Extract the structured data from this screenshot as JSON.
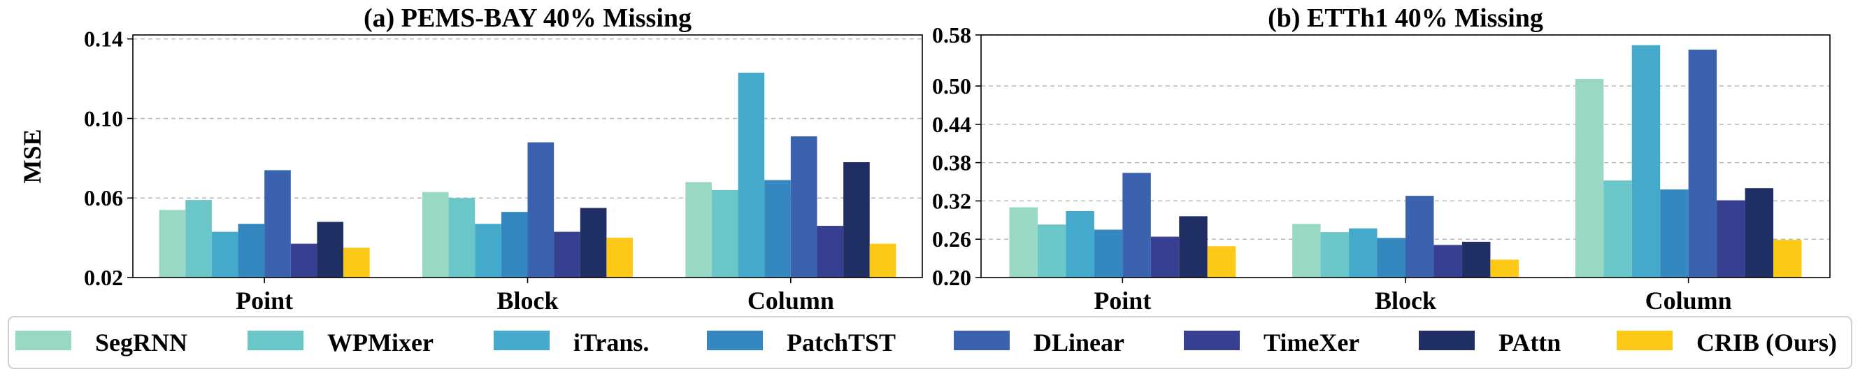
{
  "colors": [
    "#98d8c4",
    "#6bc6c9",
    "#44aacb",
    "#3488bf",
    "#3a62ae",
    "#373f91",
    "#1f2f63",
    "#fdc917"
  ],
  "legend": [
    "SegRNN",
    "WPMixer",
    "iTrans.",
    "PatchTST",
    "DLinear",
    "TimeXer",
    "PAttn",
    "CRIB (Ours)"
  ],
  "chart_data": [
    {
      "type": "bar",
      "title": "(a) PEMS-BAY 40% Missing",
      "ylabel": "MSE",
      "categories": [
        "Point",
        "Block",
        "Column"
      ],
      "ylim": [
        0.02,
        0.142
      ],
      "yticks": [
        0.02,
        0.06,
        0.1,
        0.14
      ],
      "ytick_labels": [
        "0.02",
        "0.06",
        "0.10",
        "0.14"
      ],
      "series": [
        {
          "name": "SegRNN",
          "values": [
            0.054,
            0.063,
            0.068
          ]
        },
        {
          "name": "WPMixer",
          "values": [
            0.059,
            0.06,
            0.064
          ]
        },
        {
          "name": "iTrans.",
          "values": [
            0.043,
            0.047,
            0.123
          ]
        },
        {
          "name": "PatchTST",
          "values": [
            0.047,
            0.053,
            0.069
          ]
        },
        {
          "name": "DLinear",
          "values": [
            0.074,
            0.088,
            0.091
          ]
        },
        {
          "name": "TimeXer",
          "values": [
            0.037,
            0.043,
            0.046
          ]
        },
        {
          "name": "PAttn",
          "values": [
            0.048,
            0.055,
            0.078
          ]
        },
        {
          "name": "CRIB (Ours)",
          "values": [
            0.035,
            0.04,
            0.037
          ]
        }
      ]
    },
    {
      "type": "bar",
      "title": "(b) ETTh1 40% Missing",
      "ylabel": "",
      "categories": [
        "Point",
        "Block",
        "Column"
      ],
      "ylim": [
        0.2,
        0.58
      ],
      "yticks": [
        0.2,
        0.26,
        0.32,
        0.38,
        0.44,
        0.5,
        0.58
      ],
      "ytick_labels": [
        "0.20",
        "0.26",
        "0.32",
        "0.38",
        "0.44",
        "0.50",
        "0.58"
      ],
      "series": [
        {
          "name": "SegRNN",
          "values": [
            0.31,
            0.284,
            0.511
          ]
        },
        {
          "name": "WPMixer",
          "values": [
            0.283,
            0.271,
            0.352
          ]
        },
        {
          "name": "iTrans.",
          "values": [
            0.304,
            0.277,
            0.564
          ]
        },
        {
          "name": "PatchTST",
          "values": [
            0.275,
            0.262,
            0.338
          ]
        },
        {
          "name": "DLinear",
          "values": [
            0.364,
            0.328,
            0.557
          ]
        },
        {
          "name": "TimeXer",
          "values": [
            0.264,
            0.251,
            0.321
          ]
        },
        {
          "name": "PAttn",
          "values": [
            0.296,
            0.256,
            0.34
          ]
        },
        {
          "name": "CRIB (Ours)",
          "values": [
            0.249,
            0.228,
            0.259
          ]
        }
      ]
    }
  ]
}
